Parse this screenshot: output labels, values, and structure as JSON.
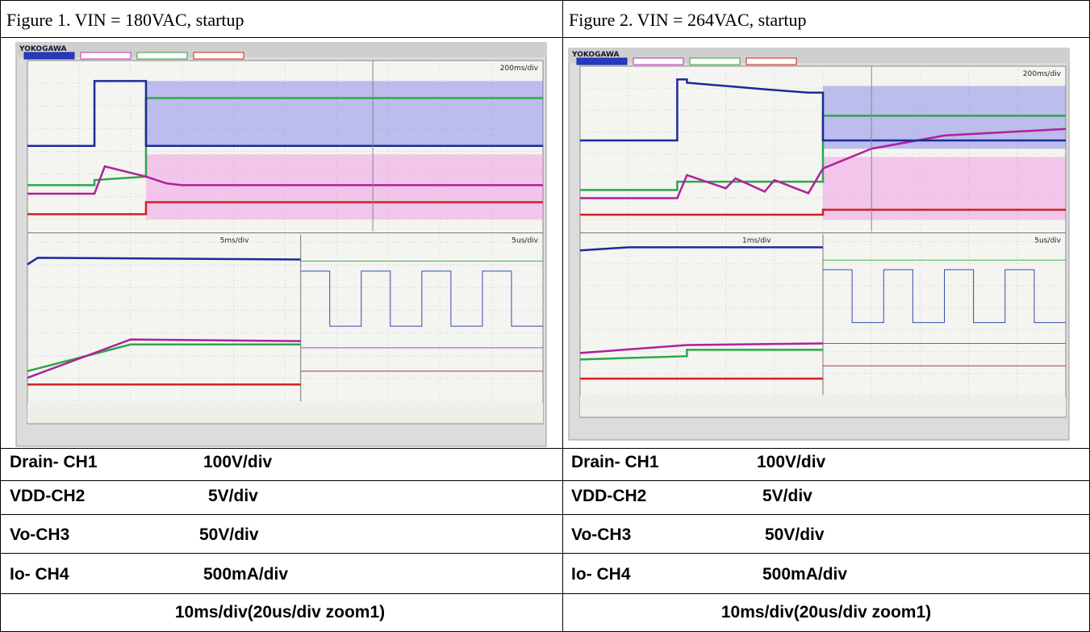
{
  "table": {
    "captions": [
      "Figure 1. VIN = 180VAC, startup",
      "Figure 2. VIN = 264VAC, startup"
    ],
    "scopes": [
      {
        "brand": "YOKOGAWA",
        "timebase": "200ms/div",
        "zoom1": "5ms/div",
        "zoom2": "5us/div"
      },
      {
        "brand": "YOKOGAWA",
        "timebase": "200ms/div",
        "zoom1": "1ms/div",
        "zoom2": "5us/div"
      }
    ],
    "rows": [
      [
        "Drain- CH1",
        "100V/div",
        "Drain- CH1",
        "100V/div"
      ],
      [
        "VDD-CH2",
        "5V/div",
        "VDD-CH2",
        "5V/div"
      ],
      [
        "Vo-CH3",
        "50V/div",
        "Vo-CH3",
        "50V/div"
      ],
      [
        "Io- CH4",
        "500mA/div",
        "Io- CH4",
        "500mA/div"
      ]
    ],
    "footer": [
      "10ms/div(20us/div zoom1)",
      "10ms/div(20us/div zoom1)"
    ]
  }
}
